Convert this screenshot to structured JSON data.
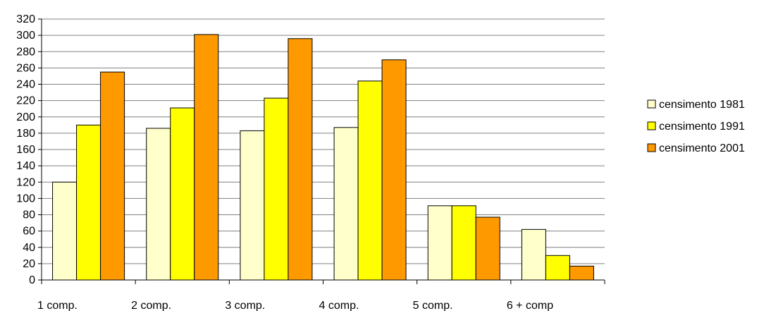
{
  "chart_data": {
    "type": "bar",
    "title": "",
    "xlabel": "",
    "ylabel": "",
    "categories": [
      "1 comp.",
      "2 comp.",
      "3 comp.",
      "4 comp.",
      "5 comp.",
      "6 + comp"
    ],
    "series": [
      {
        "name": "censimento 1981",
        "color": "#ffffcc",
        "values": [
          120,
          186,
          183,
          187,
          91,
          62
        ]
      },
      {
        "name": "censimento 1991",
        "color": "#ffff00",
        "values": [
          190,
          211,
          223,
          244,
          91,
          30
        ]
      },
      {
        "name": "censimento 2001",
        "color": "#ff9900",
        "values": [
          255,
          301,
          296,
          270,
          77,
          17
        ]
      }
    ],
    "ylim": [
      0,
      320
    ],
    "yticks": [
      0,
      20,
      40,
      60,
      80,
      100,
      120,
      140,
      160,
      180,
      200,
      220,
      240,
      260,
      280,
      300,
      320
    ],
    "grid": true,
    "legend_position": "right"
  }
}
